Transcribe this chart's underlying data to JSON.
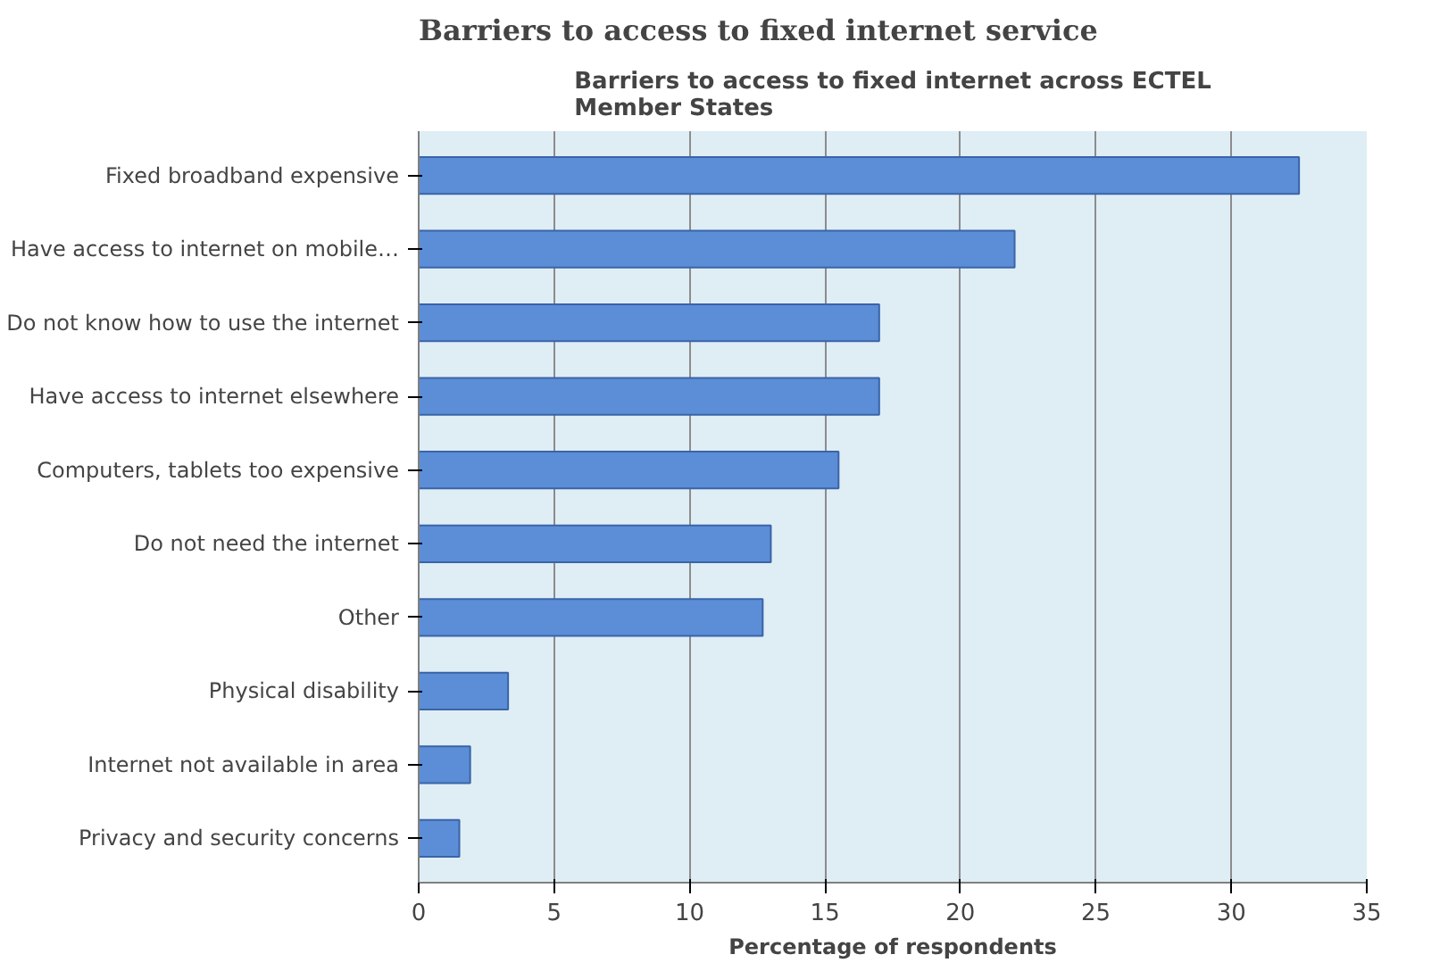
{
  "chart_data": {
    "type": "bar",
    "orientation": "horizontal",
    "title": "Barriers to access to fixed internet across ECTEL Member States",
    "xlabel": "Percentage of respondents",
    "annotations": [
      "Barriers to access to fixed internet service"
    ],
    "categories": [
      "Fixed broadband expensive",
      "Have access to internet on mobile…",
      "Do not know how to use the internet",
      "Have access to internet elsewhere",
      "Computers, tablets too expensive",
      "Do not need the internet",
      "Other",
      "Physical disability",
      "Internet not available in area",
      "Privacy and security concerns"
    ],
    "values": [
      32.5,
      22,
      17,
      17,
      15.5,
      13,
      12.7,
      3.3,
      1.9,
      1.5
    ],
    "color": "#5b8ed6",
    "xlim": [
      0,
      35
    ],
    "xticks": [
      0,
      5,
      10,
      15,
      20,
      25,
      30,
      35
    ],
    "grid": "x"
  }
}
